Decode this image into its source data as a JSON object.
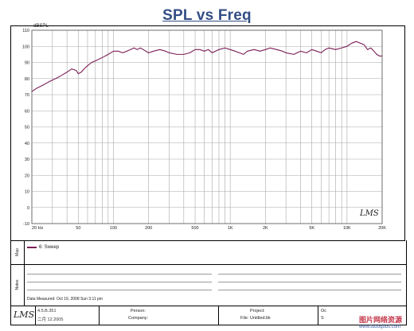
{
  "chart_data": {
    "type": "line",
    "title": "SPL vs Freq",
    "ylabel": "dBSPL",
    "xlabel": "",
    "x_scale": "log",
    "xlim": [
      20,
      20000
    ],
    "ylim": [
      -10,
      110
    ],
    "grid": true,
    "legend_position": "bottom panel",
    "y_ticks": [
      "110",
      "100",
      "90",
      "80",
      "70",
      "60",
      "50",
      "40",
      "30",
      "20",
      "10",
      "0",
      "-10"
    ],
    "x_tick_labels": [
      {
        "x": 20,
        "label": "20 Hz"
      },
      {
        "x": 50,
        "label": "50"
      },
      {
        "x": 100,
        "label": "100"
      },
      {
        "x": 200,
        "label": "200"
      },
      {
        "x": 500,
        "label": "500"
      },
      {
        "x": 1000,
        "label": "1K"
      },
      {
        "x": 2000,
        "label": "2K"
      },
      {
        "x": 5000,
        "label": "5K"
      },
      {
        "x": 10000,
        "label": "10K"
      },
      {
        "x": 20000,
        "label": "20K"
      }
    ],
    "series": [
      {
        "name": "6: Sweep",
        "color": "#7a1e55",
        "x": [
          20,
          22,
          25,
          28,
          32,
          36,
          40,
          44,
          48,
          50,
          53,
          56,
          60,
          65,
          70,
          80,
          90,
          100,
          110,
          120,
          130,
          140,
          150,
          160,
          170,
          180,
          200,
          220,
          250,
          280,
          300,
          350,
          400,
          450,
          500,
          550,
          600,
          650,
          700,
          800,
          900,
          1000,
          1100,
          1200,
          1300,
          1400,
          1600,
          1800,
          2000,
          2200,
          2500,
          2800,
          3000,
          3500,
          4000,
          4500,
          5000,
          5500,
          6000,
          6500,
          7000,
          8000,
          9000,
          10000,
          11000,
          12000,
          13000,
          14000,
          15000,
          16000,
          17000,
          18000,
          19000,
          20000
        ],
        "y": [
          72,
          74,
          76,
          78,
          80,
          82,
          84,
          86,
          85,
          83,
          84,
          86,
          88,
          90,
          91,
          93,
          95,
          97,
          97,
          96,
          97,
          98,
          99,
          98,
          99,
          98,
          96,
          97,
          98,
          97,
          96,
          95,
          95,
          96,
          98,
          98,
          97,
          98,
          96,
          98,
          99,
          98,
          97,
          96,
          95,
          97,
          98,
          97,
          98,
          99,
          98,
          97,
          96,
          95,
          97,
          96,
          98,
          97,
          96,
          98,
          99,
          98,
          99,
          100,
          102,
          103,
          102,
          101,
          98,
          99,
          97,
          95,
          94,
          94
        ]
      }
    ]
  },
  "logo": "LMS",
  "panels": {
    "map_label": "Map",
    "notes_label": "Notes",
    "data_measured": "Data Measured: Oct 19, 2008  Sun  3:11 pm"
  },
  "footer": {
    "version": "4.5.B.351",
    "date": "二月 12.2005",
    "person_label": "Person:",
    "company_label": "Company:",
    "project_label": "Project:",
    "file_label": "File: Untitled.lib",
    "right_label_1": "Oc",
    "right_label_2": "S"
  },
  "watermark": {
    "text": "图片网络资源",
    "url": "www.tudoqbbs.com"
  }
}
